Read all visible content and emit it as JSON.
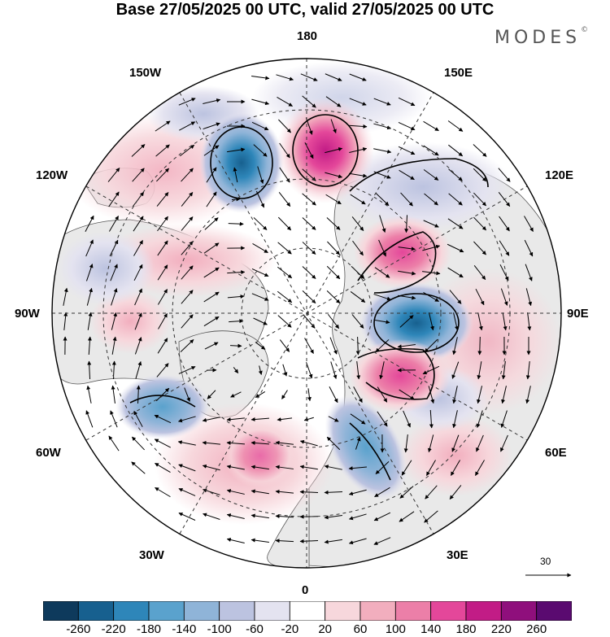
{
  "title": "Base 27/05/2025 00 UTC, valid 27/05/2025 00 UTC",
  "brand": "MODES",
  "brand_mark": "©",
  "map": {
    "projection": "north-polar-stereographic",
    "longitude_labels": {
      "top": "180",
      "bottom": "0",
      "left": "90W",
      "right": "90E",
      "upper_left_1": "150W",
      "upper_left_2": "120W",
      "lower_left_1": "60W",
      "lower_left_2": "30W",
      "upper_right_1": "150E",
      "upper_right_2": "120E",
      "lower_right_1": "60E",
      "lower_right_2": "30E"
    },
    "wind_reference_value": "30",
    "colors": {
      "land_gray": "#e9e9e9",
      "coast": "#555555",
      "grid": "#333333"
    },
    "anomaly_centers": [
      {
        "name": "north-pacific-low",
        "sign": "negative",
        "level": -180
      },
      {
        "name": "bering-high",
        "sign": "positive",
        "level": 180
      },
      {
        "name": "siberia-low",
        "sign": "negative",
        "level": -180
      },
      {
        "name": "siberia-high-north",
        "sign": "positive",
        "level": 140
      },
      {
        "name": "kazakh-high",
        "sign": "positive",
        "level": 140
      },
      {
        "name": "labrador-low",
        "sign": "negative",
        "level": -140
      },
      {
        "name": "east-europe-low",
        "sign": "negative",
        "level": -140
      },
      {
        "name": "atlantic-high",
        "sign": "positive",
        "level": 100
      }
    ]
  },
  "colorbar": {
    "ticks": [
      "-260",
      "-220",
      "-180",
      "-140",
      "-100",
      "-60",
      "-20",
      "20",
      "60",
      "100",
      "140",
      "180",
      "220",
      "260"
    ],
    "colors": [
      "#0e3a5c",
      "#17608f",
      "#2e86b9",
      "#5aa2cd",
      "#8fb4d8",
      "#bcc3e0",
      "#e4e3f0",
      "#ffffff",
      "#f7d7dc",
      "#f2aebe",
      "#ec7fa8",
      "#e4479a",
      "#c21c86",
      "#8f0f7c",
      "#5a0a70"
    ]
  }
}
